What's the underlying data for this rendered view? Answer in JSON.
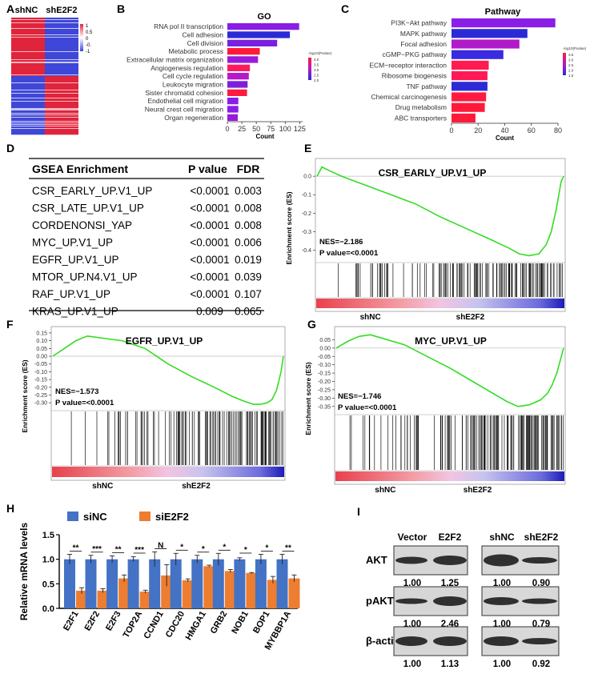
{
  "panels": [
    "A",
    "B",
    "C",
    "D",
    "E",
    "F",
    "G",
    "H",
    "I"
  ],
  "panel_a": {
    "col_labels": [
      "shNC",
      "shE2F2"
    ],
    "legend_ticks": [
      "1",
      "0.5",
      "0",
      "-0.",
      "-1"
    ],
    "colors": {
      "high": "#e0243b",
      "low": "#3f47d8",
      "mid": "#ffffff"
    }
  },
  "gsea_table": {
    "headers": [
      "GSEA Enrichment",
      "P value",
      "FDR"
    ],
    "rows": [
      [
        "CSR_EARLY_UP.V1_UP",
        "<0.0001",
        "0.003"
      ],
      [
        "CSR_LATE_UP.V1_UP",
        "<0.0001",
        "0.008"
      ],
      [
        "CORDENONSI_YAP",
        "<0.0001",
        "0.008"
      ],
      [
        "MYC_UP.V1_UP",
        "<0.0001",
        "0.006"
      ],
      [
        "EGFR_UP.V1_UP",
        "<0.0001",
        "0.019"
      ],
      [
        "MTOR_UP.N4.V1_UP",
        "<0.0001",
        "0.039"
      ],
      [
        "RAF_UP.V1_UP",
        "<0.0001",
        "0.107"
      ],
      [
        "KRAS_UP.V1_UP",
        "0.009",
        "0.065"
      ]
    ]
  },
  "gsea_common": {
    "ylabel": "Enrichment score (ES)",
    "left_label": "shNC",
    "right_label": "shE2F2",
    "curve_color": "#33dd22"
  },
  "western": {
    "rows": [
      "AKT",
      "pAKT",
      "β-actin"
    ],
    "left_headers": [
      "Vector",
      "E2F2"
    ],
    "right_headers": [
      "shNC",
      "shE2F2"
    ],
    "values": [
      [
        "1.00",
        "1.25",
        "1.00",
        "0.90"
      ],
      [
        "1.00",
        "2.46",
        "1.00",
        "0.79"
      ],
      [
        "1.00",
        "1.13",
        "1.00",
        "0.92"
      ]
    ]
  },
  "chart_data": [
    {
      "panel": "B",
      "type": "bar",
      "orientation": "horizontal",
      "title": "GO",
      "xlabel": "Count",
      "xlim": [
        0,
        130
      ],
      "xticks": [
        0,
        25,
        50,
        75,
        100,
        125
      ],
      "legend_title": "-log10(Pvalue)",
      "legend_ticks": [
        "4.0",
        "3.5",
        "3.0",
        "2.5",
        "2.0"
      ],
      "categories": [
        "RNA pol II transcription",
        "Cell adhesion",
        "Cell division",
        "Metabolic process",
        "Extracellular matrix organization",
        "Angiogenesis regulation",
        "Cell cycle regulation",
        "Leukocyte migration",
        "Sister chromatid cohesion",
        "Endothelial cell migration",
        "Neural crest cell migration",
        "Organ regeneration"
      ],
      "values": [
        124,
        108,
        86,
        56,
        53,
        39,
        37,
        35,
        34,
        19,
        19,
        18
      ],
      "colors": [
        "#8a1de6",
        "#2b2bd6",
        "#7a1fe0",
        "#ff1a3a",
        "#9a1ad8",
        "#ff1a60",
        "#b51ac8",
        "#7a1fe0",
        "#ff1a40",
        "#8a1de6",
        "#8a1de6",
        "#9a1ad8"
      ]
    },
    {
      "panel": "C",
      "type": "bar",
      "orientation": "horizontal",
      "title": "Pathway",
      "xlabel": "Count",
      "xlim": [
        0,
        80
      ],
      "xticks": [
        0,
        20,
        40,
        60,
        80
      ],
      "legend_title": "-log10(Pvalue)",
      "legend_ticks": [
        "3.5",
        "3.0",
        "2.5",
        "2.0",
        "1.5"
      ],
      "categories": [
        "PI3K−Akt pathway",
        "MAPK pathway",
        "Focal adhesion",
        "cGMP−PKG pathway",
        "ECM−receptor interaction",
        "Ribosome biogenesis",
        "TNF pathway",
        "Chemical carcinogenesis",
        "Drug metabolism",
        "ABC transporters"
      ],
      "values": [
        78,
        57,
        51,
        39,
        28,
        27,
        27,
        26,
        25,
        18
      ],
      "colors": [
        "#8a1de6",
        "#2b2bd6",
        "#b01ac8",
        "#3a2be0",
        "#ff1a50",
        "#ff1a55",
        "#2b2bd6",
        "#ff1a40",
        "#ff1a3a",
        "#ff1a3a"
      ]
    },
    {
      "panel": "E",
      "type": "line",
      "title": "CSR_EARLY_UP.V1_UP",
      "ylabel": "Enrichment score (ES)",
      "ylim": [
        -0.45,
        0.07
      ],
      "yticks": [
        "0.0",
        "-0.1",
        "-0.2",
        "-0.3",
        "-0.4"
      ],
      "ytick_values": [
        0.0,
        -0.1,
        -0.2,
        -0.3,
        -0.4
      ],
      "x": [
        0,
        0.02,
        0.05,
        0.1,
        0.2,
        0.3,
        0.4,
        0.5,
        0.6,
        0.7,
        0.78,
        0.82,
        0.86,
        0.9,
        0.93,
        0.95,
        0.97,
        0.99,
        1.0
      ],
      "y": [
        0.0,
        0.05,
        0.03,
        0.0,
        -0.05,
        -0.1,
        -0.15,
        -0.22,
        -0.28,
        -0.34,
        -0.39,
        -0.42,
        -0.43,
        -0.42,
        -0.37,
        -0.3,
        -0.18,
        -0.03,
        0.0
      ],
      "annotations": [
        "NES=−2.186",
        "P value=<0.0001"
      ]
    },
    {
      "panel": "F",
      "type": "line",
      "title": "EGFR_UP.V1_UP",
      "ylabel": "Enrichment score (ES)",
      "ylim": [
        -0.33,
        0.16
      ],
      "yticks": [
        "0.15",
        "0.10",
        "0.05",
        "0.00",
        "-0.05",
        "-0.10",
        "-0.15",
        "-0.20",
        "-0.25",
        "-0.30"
      ],
      "ytick_values": [
        0.15,
        0.1,
        0.05,
        0.0,
        -0.05,
        -0.1,
        -0.15,
        -0.2,
        -0.25,
        -0.3
      ],
      "x": [
        0,
        0.05,
        0.1,
        0.15,
        0.2,
        0.3,
        0.4,
        0.5,
        0.6,
        0.7,
        0.78,
        0.83,
        0.87,
        0.9,
        0.93,
        0.95,
        0.97,
        0.99,
        1.0
      ],
      "y": [
        0.0,
        0.05,
        0.1,
        0.13,
        0.12,
        0.1,
        0.05,
        -0.05,
        -0.13,
        -0.2,
        -0.26,
        -0.29,
        -0.31,
        -0.31,
        -0.3,
        -0.28,
        -0.22,
        -0.1,
        0.0
      ],
      "annotations": [
        "NES=−1.573",
        "P value=<0.0001"
      ]
    },
    {
      "panel": "G",
      "type": "line",
      "title": "MYC_UP.V1_UP",
      "ylabel": "Enrichment score (ES)",
      "ylim": [
        -0.38,
        0.1
      ],
      "yticks": [
        "0.05",
        "0.00",
        "-0.05",
        "-0.10",
        "-0.15",
        "-0.20",
        "-0.25",
        "-0.30",
        "-0.35"
      ],
      "ytick_values": [
        0.05,
        0.0,
        -0.05,
        -0.1,
        -0.15,
        -0.2,
        -0.25,
        -0.3,
        -0.35
      ],
      "x": [
        0,
        0.05,
        0.1,
        0.15,
        0.2,
        0.3,
        0.4,
        0.5,
        0.6,
        0.7,
        0.75,
        0.8,
        0.85,
        0.9,
        0.93,
        0.95,
        0.97,
        0.99,
        1.0
      ],
      "y": [
        0.0,
        0.04,
        0.07,
        0.08,
        0.06,
        0.02,
        -0.05,
        -0.12,
        -0.2,
        -0.28,
        -0.32,
        -0.35,
        -0.34,
        -0.31,
        -0.27,
        -0.22,
        -0.15,
        -0.05,
        0.0
      ],
      "annotations": [
        "NES=−1.746",
        "P value=<0.0001"
      ]
    },
    {
      "panel": "H",
      "type": "bar",
      "ylabel": "Relative mRNA levels",
      "ylim": [
        0,
        1.5
      ],
      "yticks": [
        "0.0",
        "0.5",
        "1.0",
        "1.5"
      ],
      "ytick_values": [
        0.0,
        0.5,
        1.0,
        1.5
      ],
      "legend_placement": "top-left",
      "categories": [
        "E2F1",
        "E2F2",
        "E2F3",
        "TOP2A",
        "CCND1",
        "CDC20",
        "HMGA1",
        "GRB2",
        "NOB1",
        "BOP1",
        "MYBBP1A"
      ],
      "series": [
        {
          "name": "siNC",
          "color": "#4472c4",
          "values": [
            1,
            1,
            1,
            1,
            1,
            1,
            1,
            1,
            1,
            1,
            1
          ],
          "errors": [
            0.1,
            0.08,
            0.07,
            0.05,
            0.15,
            0.12,
            0.08,
            0.12,
            0.03,
            0.1,
            0.1
          ]
        },
        {
          "name": "siE2F2",
          "color": "#ed7d31",
          "values": [
            0.36,
            0.36,
            0.61,
            0.34,
            0.67,
            0.57,
            0.86,
            0.76,
            0.72,
            0.58,
            0.61
          ],
          "errors": [
            0.06,
            0.04,
            0.07,
            0.03,
            0.22,
            0.03,
            0.02,
            0.03,
            0.01,
            0.07,
            0.07
          ]
        }
      ],
      "significance": [
        "**",
        "***",
        "**",
        "***",
        "N",
        "*",
        "*",
        "*",
        "*",
        "*",
        "**"
      ]
    }
  ]
}
